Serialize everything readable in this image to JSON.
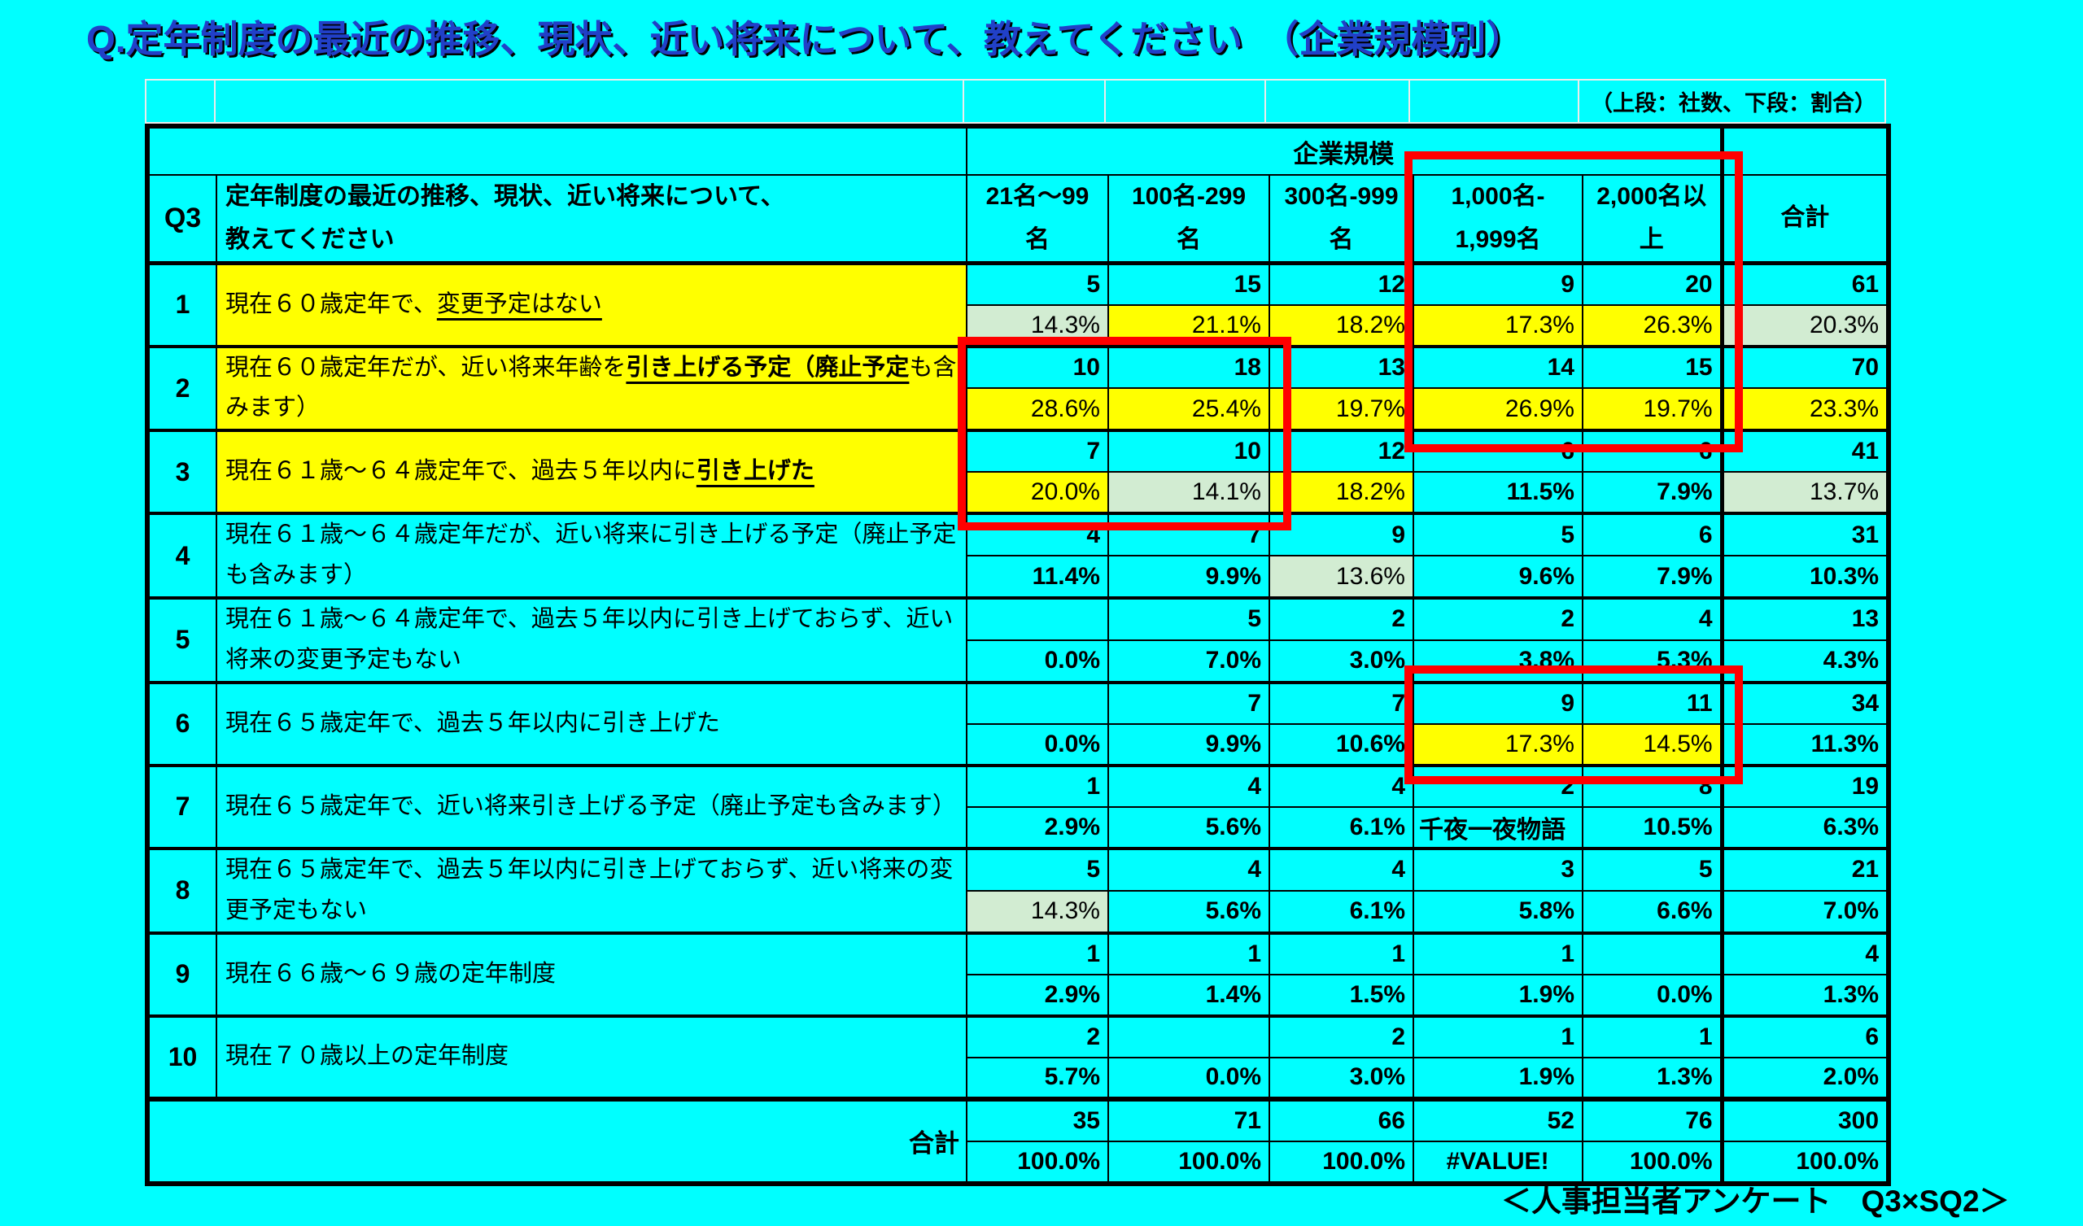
{
  "page": {
    "title": "Q.定年制度の最近の推移、現状、近い将来について、教えてください　（企業規模別）",
    "note": "（上段：社数、下段：割合）",
    "footer": "＜人事担当者アンケート　Q3×SQ2＞",
    "colors": {
      "background": "#00ffff",
      "title_blue": "#2140c8",
      "highlight_yellow": "#ffff00",
      "highlight_green": "#d2ecd2",
      "box_red": "#ff0000",
      "grid_black": "#000000"
    }
  },
  "table": {
    "q_label": "Q3",
    "question": "定年制度の最近の推移、現状、近い将来について、\n教えてください",
    "group_header": "企業規模",
    "columns": [
      "21名～99\n名",
      "100名-299\n名",
      "300名-999\n名",
      "1,000名-\n1,999名",
      "2,000名以\n上",
      "合計"
    ],
    "rows": [
      {
        "no": "1",
        "label_bg": "yellow",
        "label_parts": [
          {
            "t": "現在６０歳定年で、",
            "s": "plain"
          },
          {
            "t": "変更予定はない",
            "s": "u"
          }
        ],
        "counts": [
          "5",
          "15",
          "12",
          "9",
          "20",
          "61"
        ],
        "pcts": [
          {
            "v": "14.3%",
            "bg": "green"
          },
          {
            "v": "21.1%",
            "bg": "yellow"
          },
          {
            "v": "18.2%",
            "bg": "yellow"
          },
          {
            "v": "17.3%",
            "bg": "yellow"
          },
          {
            "v": "26.3%",
            "bg": "yellow"
          },
          {
            "v": "20.3%",
            "bg": "green"
          }
        ]
      },
      {
        "no": "2",
        "label_bg": "yellow",
        "label_parts": [
          {
            "t": "現在６０歳定年だが、近い将来年齢を",
            "s": "plain"
          },
          {
            "t": "引き上げる予定（廃止予定",
            "s": "bu"
          },
          {
            "t": "も含みます）",
            "s": "plain"
          }
        ],
        "counts": [
          "10",
          "18",
          "13",
          "14",
          "15",
          "70"
        ],
        "pcts": [
          {
            "v": "28.6%",
            "bg": "yellow"
          },
          {
            "v": "25.4%",
            "bg": "yellow"
          },
          {
            "v": "19.7%",
            "bg": "yellow"
          },
          {
            "v": "26.9%",
            "bg": "yellow"
          },
          {
            "v": "19.7%",
            "bg": "yellow"
          },
          {
            "v": "23.3%",
            "bg": "yellow"
          }
        ]
      },
      {
        "no": "3",
        "label_bg": "yellow",
        "label_parts": [
          {
            "t": "現在６１歳～６４歳定年で、過去５年以内に",
            "s": "plain"
          },
          {
            "t": "引き上げた",
            "s": "bu"
          }
        ],
        "counts": [
          "7",
          "10",
          "12",
          "6",
          "6",
          "41"
        ],
        "pcts": [
          {
            "v": "20.0%",
            "bg": "yellow"
          },
          {
            "v": "14.1%",
            "bg": "green"
          },
          {
            "v": "18.2%",
            "bg": "yellow"
          },
          {
            "v": "11.5%"
          },
          {
            "v": "7.9%"
          },
          {
            "v": "13.7%",
            "bg": "green"
          }
        ]
      },
      {
        "no": "4",
        "label_bg": "none",
        "label_parts": [
          {
            "t": "現在６１歳～６４歳定年だが、近い将来に引き上げる予定（廃止予定も含みます）",
            "s": "plain"
          }
        ],
        "counts": [
          "4",
          "7",
          "9",
          "5",
          "6",
          "31"
        ],
        "pcts": [
          {
            "v": "11.4%"
          },
          {
            "v": "9.9%"
          },
          {
            "v": "13.6%",
            "bg": "green"
          },
          {
            "v": "9.6%"
          },
          {
            "v": "7.9%"
          },
          {
            "v": "10.3%"
          }
        ]
      },
      {
        "no": "5",
        "label_bg": "none",
        "label_parts": [
          {
            "t": "現在６１歳～６４歳定年で、過去５年以内に引き上げておらず、近い将来の変更予定もない",
            "s": "plain"
          }
        ],
        "counts": [
          "",
          "5",
          "2",
          "2",
          "4",
          "13"
        ],
        "pcts": [
          {
            "v": "0.0%"
          },
          {
            "v": "7.0%"
          },
          {
            "v": "3.0%"
          },
          {
            "v": "3.8%"
          },
          {
            "v": "5.3%"
          },
          {
            "v": "4.3%"
          }
        ]
      },
      {
        "no": "6",
        "label_bg": "none",
        "label_parts": [
          {
            "t": "現在６５歳定年で、過去５年以内に引き上げた",
            "s": "plain"
          }
        ],
        "counts": [
          "",
          "7",
          "7",
          "9",
          "11",
          "34"
        ],
        "pcts": [
          {
            "v": "0.0%"
          },
          {
            "v": "9.9%"
          },
          {
            "v": "10.6%"
          },
          {
            "v": "17.3%",
            "bg": "yellow"
          },
          {
            "v": "14.5%",
            "bg": "yellow"
          },
          {
            "v": "11.3%"
          }
        ]
      },
      {
        "no": "7",
        "label_bg": "none",
        "label_parts": [
          {
            "t": "現在６５歳定年で、近い将来引き上げる予定（廃止予定も含みます）",
            "s": "plain"
          }
        ],
        "counts": [
          "1",
          "4",
          "4",
          "2",
          "8",
          "19"
        ],
        "pcts": [
          {
            "v": "2.9%"
          },
          {
            "v": "5.6%"
          },
          {
            "v": "6.1%"
          },
          {
            "v": "千夜一夜物語",
            "align": "left"
          },
          {
            "v": "10.5%"
          },
          {
            "v": "6.3%"
          }
        ]
      },
      {
        "no": "8",
        "label_bg": "none",
        "label_parts": [
          {
            "t": "現在６５歳定年で、過去５年以内に引き上げておらず、近い将来の変更予定もない",
            "s": "plain"
          }
        ],
        "counts": [
          "5",
          "4",
          "4",
          "3",
          "5",
          "21"
        ],
        "pcts": [
          {
            "v": "14.3%",
            "bg": "green"
          },
          {
            "v": "5.6%"
          },
          {
            "v": "6.1%"
          },
          {
            "v": "5.8%"
          },
          {
            "v": "6.6%"
          },
          {
            "v": "7.0%"
          }
        ]
      },
      {
        "no": "9",
        "label_bg": "none",
        "label_parts": [
          {
            "t": "現在６６歳～６９歳の定年制度",
            "s": "plain"
          }
        ],
        "counts": [
          "1",
          "1",
          "1",
          "1",
          "",
          "4"
        ],
        "pcts": [
          {
            "v": "2.9%"
          },
          {
            "v": "1.4%"
          },
          {
            "v": "1.5%"
          },
          {
            "v": "1.9%"
          },
          {
            "v": "0.0%"
          },
          {
            "v": "1.3%"
          }
        ]
      },
      {
        "no": "10",
        "label_bg": "none",
        "label_parts": [
          {
            "t": "現在７０歳以上の定年制度",
            "s": "plain"
          }
        ],
        "counts": [
          "2",
          "",
          "2",
          "1",
          "1",
          "6"
        ],
        "pcts": [
          {
            "v": "5.7%"
          },
          {
            "v": "0.0%"
          },
          {
            "v": "3.0%"
          },
          {
            "v": "1.9%"
          },
          {
            "v": "1.3%"
          },
          {
            "v": "2.0%"
          }
        ]
      }
    ],
    "total": {
      "label": "合計",
      "counts": [
        "35",
        "71",
        "66",
        "52",
        "76",
        "300"
      ],
      "pcts": [
        {
          "v": "100.0%"
        },
        {
          "v": "100.0%"
        },
        {
          "v": "100.0%"
        },
        {
          "v": "#VALUE!",
          "align": "center"
        },
        {
          "v": "100.0%"
        },
        {
          "v": "100.0%"
        }
      ]
    }
  }
}
